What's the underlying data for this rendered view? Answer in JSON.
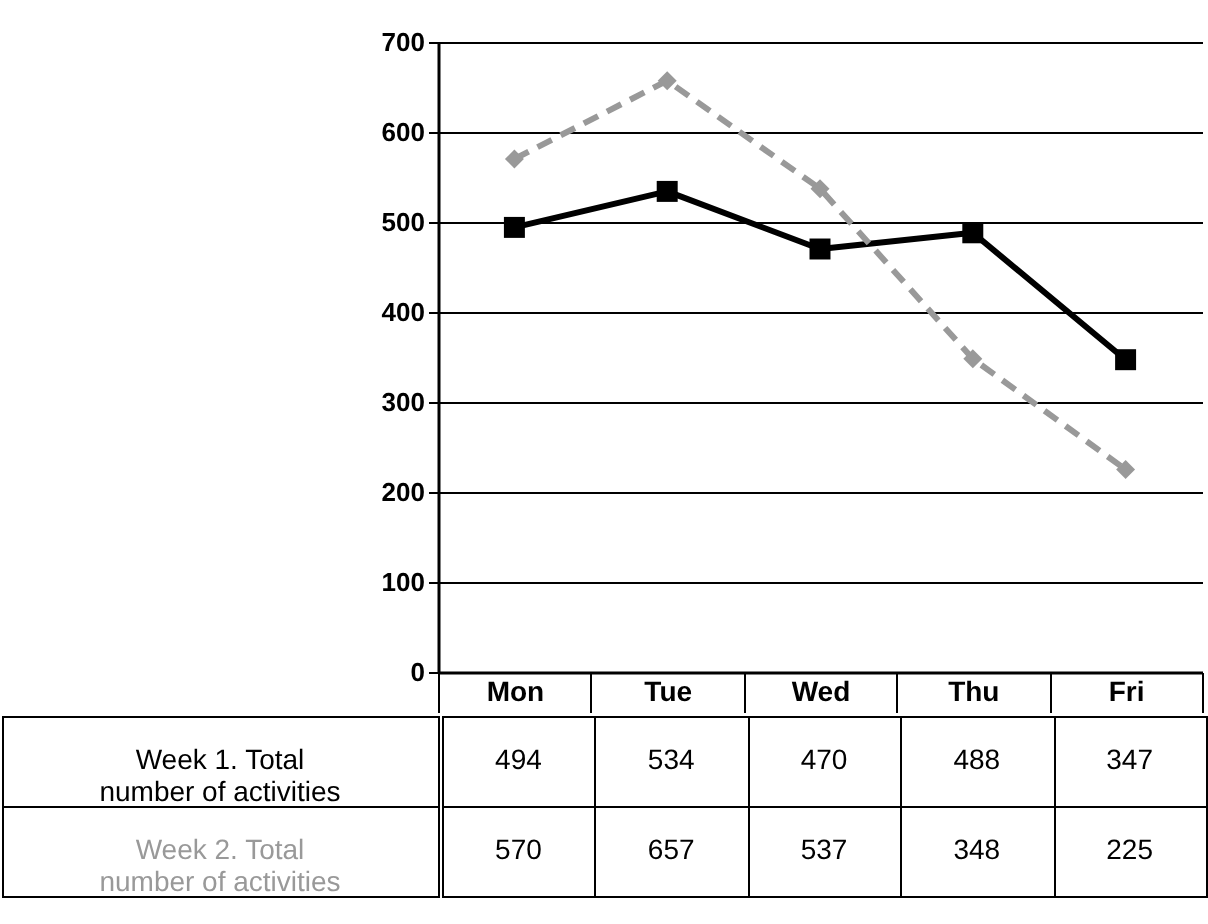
{
  "chart_data": {
    "type": "line",
    "categories": [
      "Mon",
      "Tue",
      "Wed",
      "Thu",
      "Fri"
    ],
    "series": [
      {
        "name": "Week 1. Total number of activities",
        "color": "#000000",
        "marker": "square",
        "line_style": "solid",
        "values": [
          494,
          534,
          470,
          488,
          347
        ]
      },
      {
        "name": "Week 2. Total number of activities",
        "color": "#999999",
        "marker": "diamond",
        "line_style": "dashed",
        "values": [
          570,
          657,
          537,
          348,
          225
        ]
      }
    ],
    "ylim": [
      0,
      700
    ],
    "yticks": [
      0,
      100,
      200,
      300,
      400,
      500,
      600,
      700
    ],
    "grid": "y",
    "data_labels": true
  }
}
